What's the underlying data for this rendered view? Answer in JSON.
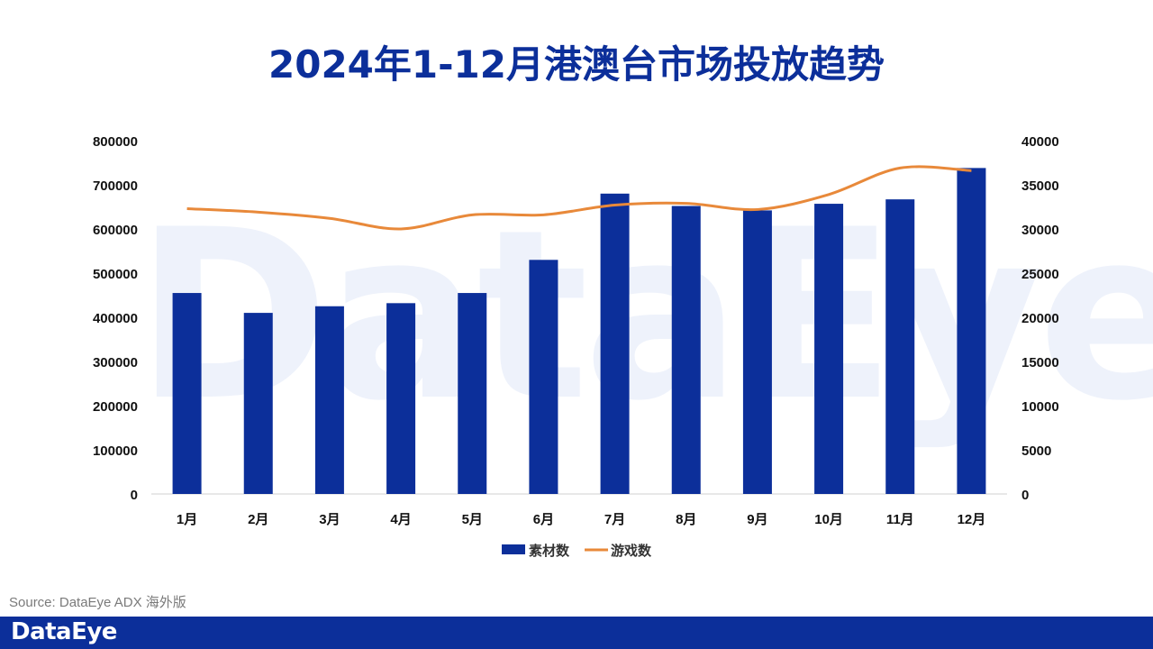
{
  "title": "2024年1-12月港澳台市场投放趋势",
  "watermark": "DataEye",
  "source": "Source: DataEye ADX 海外版",
  "footer_logo": "DataEye",
  "colors": {
    "bar": "#0c2f9a",
    "line": "#e8893a",
    "footer": "#0c2f9a",
    "title": "#0c2f9a"
  },
  "chart_data": {
    "type": "bar",
    "categories": [
      "1月",
      "2月",
      "3月",
      "4月",
      "5月",
      "6月",
      "7月",
      "8月",
      "9月",
      "10月",
      "11月",
      "12月"
    ],
    "series": [
      {
        "name": "素材数",
        "type": "bar",
        "axis": "left",
        "values": [
          455000,
          410000,
          425000,
          432000,
          455000,
          530000,
          680000,
          652000,
          642000,
          657000,
          667000,
          738000
        ]
      },
      {
        "name": "游戏数",
        "type": "line",
        "axis": "right",
        "values": [
          32300,
          31900,
          31200,
          30000,
          31600,
          31600,
          32700,
          32900,
          32200,
          33900,
          36900,
          36600
        ]
      }
    ],
    "y_left": {
      "min": 0,
      "max": 800000,
      "ticks": [
        "0",
        "100000",
        "200000",
        "300000",
        "400000",
        "500000",
        "600000",
        "700000",
        "800000"
      ]
    },
    "y_right": {
      "min": 0,
      "max": 40000,
      "ticks": [
        "0",
        "5000",
        "10000",
        "15000",
        "20000",
        "25000",
        "30000",
        "35000",
        "40000"
      ]
    },
    "legend": {
      "position": "bottom",
      "entries": [
        "素材数",
        "游戏数"
      ]
    }
  }
}
